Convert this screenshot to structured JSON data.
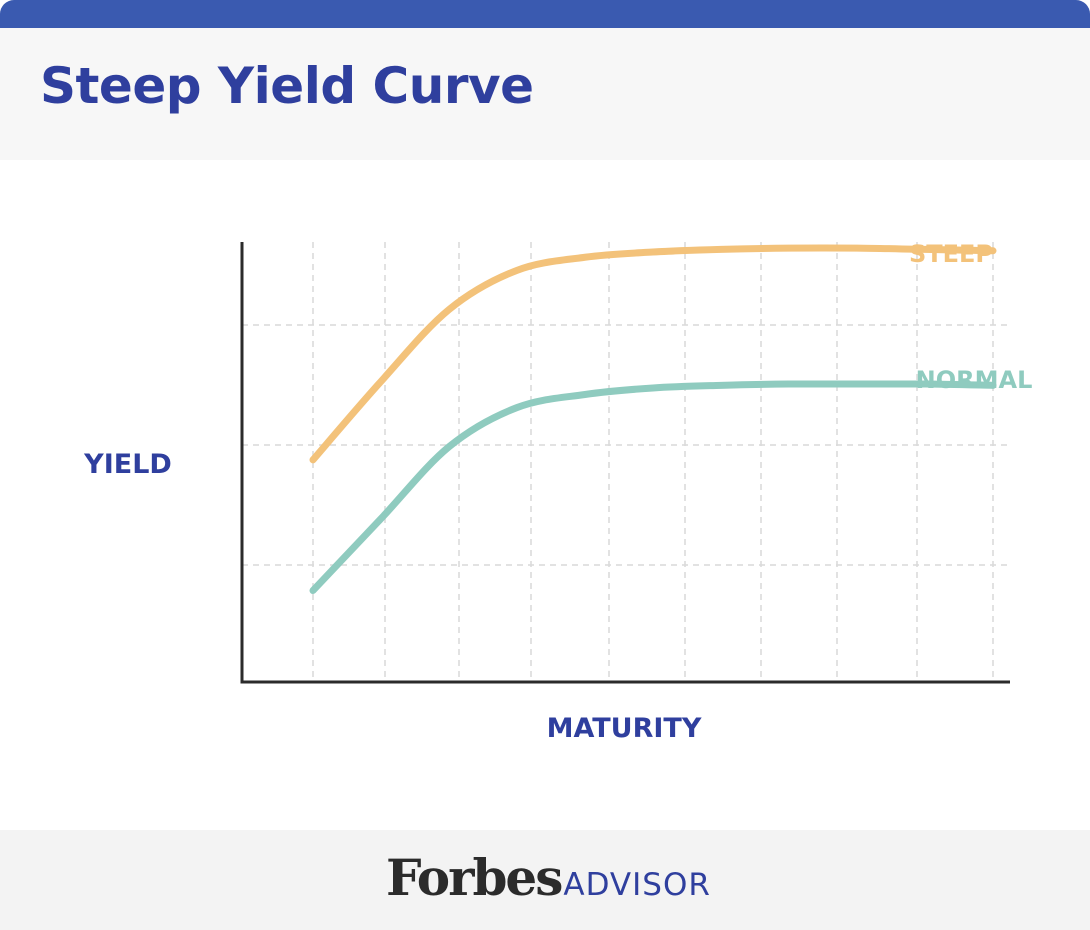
{
  "title": "Steep Yield Curve",
  "brand": {
    "forbes": "Forbes",
    "advisor": "ADVISOR"
  },
  "colors": {
    "top_bar": "#3a5ab0",
    "title": "#2f3f9e",
    "axis_label": "#2f3f9e",
    "axis_line": "#2b2b2b",
    "grid": "#d9d9d9",
    "steep": "#f3c27a",
    "normal": "#8fcbbf"
  },
  "chart_data": {
    "type": "line",
    "title": "",
    "xlabel": "MATURITY",
    "ylabel": "YIELD",
    "xlim": [
      0,
      10
    ],
    "ylim": [
      0,
      3.65
    ],
    "grid": true,
    "legend": "inline labels at line ends",
    "series": [
      {
        "name": "STEEP",
        "x": [
          0,
          1,
          2,
          3,
          4,
          5,
          6,
          7,
          8,
          9,
          10
        ],
        "y": [
          1.7,
          2.3,
          2.85,
          3.15,
          3.25,
          3.29,
          3.31,
          3.32,
          3.32,
          3.31,
          3.3
        ]
      },
      {
        "name": "NORMAL",
        "x": [
          0,
          1,
          2,
          3,
          4,
          5,
          6,
          7,
          8,
          9,
          10
        ],
        "y": [
          0.7,
          1.25,
          1.8,
          2.1,
          2.2,
          2.25,
          2.27,
          2.28,
          2.28,
          2.28,
          2.27
        ]
      }
    ]
  }
}
